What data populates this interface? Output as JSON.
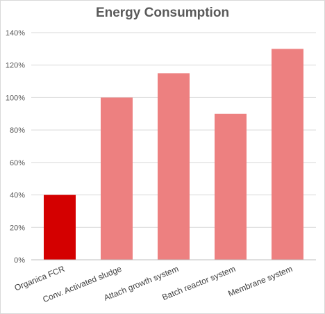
{
  "chart_data": {
    "type": "bar",
    "title": "Energy Consumption",
    "categories": [
      "Organica FCR",
      "Conv. Activated sludge",
      "Attach growth system",
      "Batch reactor system",
      "Membrane system"
    ],
    "values": [
      40,
      100,
      115,
      90,
      130
    ],
    "colors": [
      "#d40000",
      "#ed8080",
      "#ed8080",
      "#ed8080",
      "#ed8080"
    ],
    "ylim": [
      0,
      140
    ],
    "yticks": [
      0,
      20,
      40,
      60,
      80,
      100,
      120,
      140
    ],
    "ytick_labels": [
      "0%",
      "20%",
      "40%",
      "60%",
      "80%",
      "100%",
      "120%",
      "140%"
    ],
    "grid": true,
    "legend": "none"
  }
}
